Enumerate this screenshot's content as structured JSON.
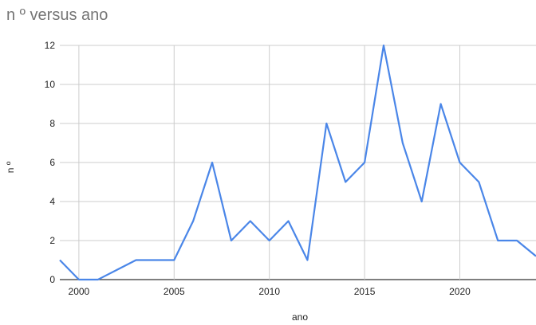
{
  "chart_data": {
    "type": "line",
    "title": "n º versus ano",
    "xlabel": "ano",
    "ylabel": "n º",
    "xlim": [
      1999,
      2024
    ],
    "ylim": [
      0,
      12
    ],
    "x_ticks": [
      2000,
      2005,
      2010,
      2015,
      2020
    ],
    "y_ticks": [
      0,
      2,
      4,
      6,
      8,
      10,
      12
    ],
    "grid": true,
    "legend": "none",
    "line_color": "#4a86e8",
    "series": [
      {
        "x": [
          1999,
          2000,
          2001,
          2002,
          2003,
          2004,
          2005,
          2006,
          2007,
          2008,
          2009,
          2010,
          2011,
          2012,
          2013,
          2014,
          2015,
          2016,
          2017,
          2018,
          2019,
          2020,
          2021,
          2022,
          2023,
          2024
        ],
        "values": [
          1,
          0,
          0,
          0.5,
          1,
          1,
          1,
          3,
          6,
          2,
          3,
          2,
          3,
          1,
          8,
          5,
          6,
          12,
          7,
          4,
          9,
          6,
          5,
          2,
          2,
          1.2
        ]
      }
    ]
  }
}
